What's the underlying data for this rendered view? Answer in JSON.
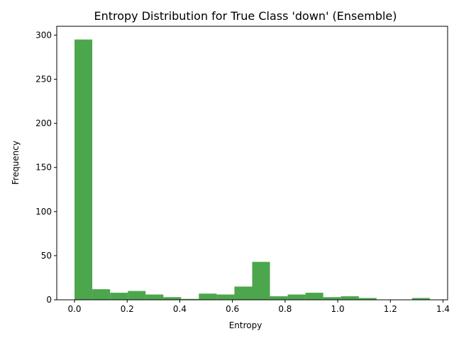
{
  "chart_data": {
    "type": "bar",
    "title": "Entropy Distribution for True Class 'down' (Ensemble)",
    "xlabel": "Entropy",
    "ylabel": "Frequency",
    "bin_width": 0.0675,
    "bins": [
      {
        "start": 0.0,
        "count": 295
      },
      {
        "start": 0.0675,
        "count": 12
      },
      {
        "start": 0.135,
        "count": 8
      },
      {
        "start": 0.2025,
        "count": 10
      },
      {
        "start": 0.27,
        "count": 6
      },
      {
        "start": 0.3375,
        "count": 3
      },
      {
        "start": 0.405,
        "count": 1
      },
      {
        "start": 0.4725,
        "count": 7
      },
      {
        "start": 0.54,
        "count": 6
      },
      {
        "start": 0.6075,
        "count": 15
      },
      {
        "start": 0.675,
        "count": 43
      },
      {
        "start": 0.7425,
        "count": 4
      },
      {
        "start": 0.81,
        "count": 6
      },
      {
        "start": 0.8775,
        "count": 8
      },
      {
        "start": 0.945,
        "count": 3
      },
      {
        "start": 1.0125,
        "count": 4
      },
      {
        "start": 1.08,
        "count": 2
      },
      {
        "start": 1.1475,
        "count": 0
      },
      {
        "start": 1.215,
        "count": 0
      },
      {
        "start": 1.2825,
        "count": 2
      }
    ],
    "xlim": [
      -0.0675,
      1.4175
    ],
    "ylim": [
      0,
      310
    ],
    "xticks": [
      "0.0",
      "0.2",
      "0.4",
      "0.6",
      "0.8",
      "1.0",
      "1.2",
      "1.4"
    ],
    "yticks": [
      "0",
      "50",
      "100",
      "150",
      "200",
      "250",
      "300"
    ],
    "bar_color": "#4ca64c",
    "grid": false,
    "legend": "none"
  }
}
